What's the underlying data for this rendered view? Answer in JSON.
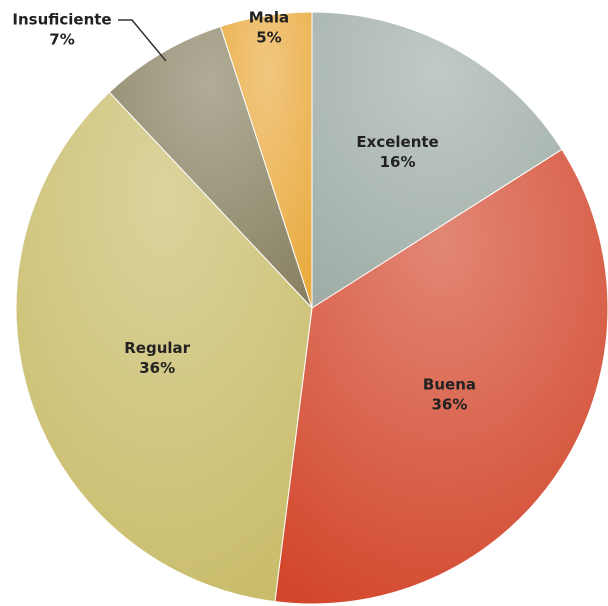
{
  "chart_data": {
    "type": "pie",
    "categories": [
      "Excelente",
      "Buena",
      "Regular",
      "Insuficiente",
      "Mala"
    ],
    "values": [
      16,
      36,
      36,
      7,
      5
    ],
    "value_labels": [
      "16%",
      "36%",
      "36%",
      "7%",
      "5%"
    ],
    "colors": [
      "#9fada6",
      "#d2462b",
      "#c8bb68",
      "#878060",
      "#e9a93c"
    ]
  }
}
